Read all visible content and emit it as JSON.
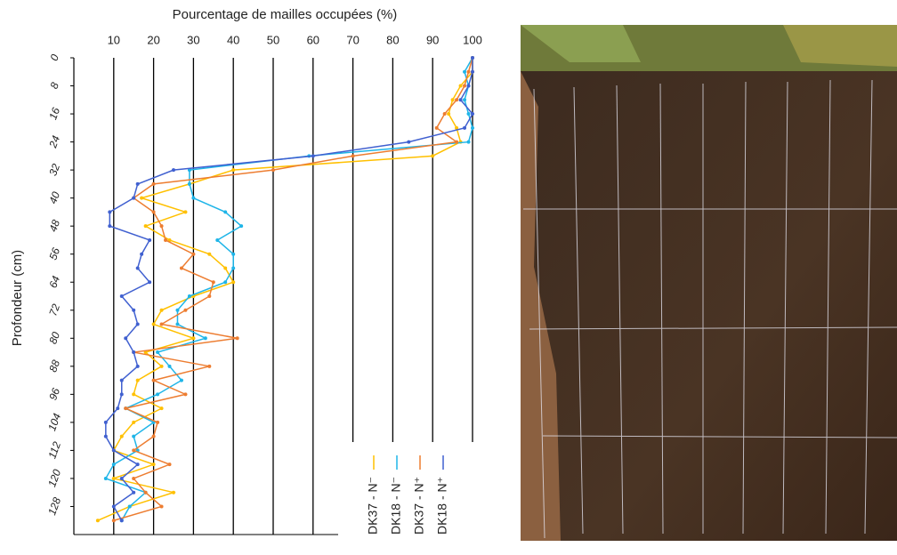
{
  "chart_data": {
    "type": "line",
    "orientation": "vertical",
    "title": "Pourcentage de mailles occupées (%)",
    "y_label": "Profondeur (cm)",
    "x": [
      0,
      4,
      8,
      12,
      16,
      20,
      24,
      28,
      32,
      36,
      40,
      44,
      48,
      52,
      56,
      60,
      64,
      68,
      72,
      76,
      80,
      84,
      88,
      92,
      96,
      100,
      104,
      108,
      112,
      116,
      120,
      124,
      128,
      132
    ],
    "xlim": [
      0,
      136
    ],
    "xticks": [
      0,
      8,
      16,
      24,
      32,
      40,
      48,
      56,
      64,
      72,
      80,
      88,
      96,
      104,
      112,
      120,
      128
    ],
    "ylim": [
      0,
      100
    ],
    "yticks": [
      10,
      20,
      30,
      40,
      50,
      60,
      70,
      80,
      90,
      100
    ],
    "grid": true,
    "legend": "bottom-right",
    "series": [
      {
        "name": "DK37 - N⁻",
        "color": "#ffc000",
        "values": [
          100,
          100,
          97,
          95,
          94,
          96,
          97,
          90,
          40,
          29,
          17,
          28,
          18,
          24,
          34,
          38,
          40,
          30,
          22,
          20,
          30,
          18,
          22,
          16,
          15,
          22,
          15,
          12,
          10,
          20,
          10,
          25,
          14,
          6
        ]
      },
      {
        "name": "DK18 - N⁻",
        "color": "#1fb5e8",
        "values": [
          100,
          98,
          99,
          98,
          99,
          100,
          99,
          59,
          29,
          29,
          30,
          38,
          42,
          36,
          40,
          40,
          38,
          29,
          26,
          26,
          33,
          21,
          24,
          27,
          21,
          13,
          20,
          15,
          16,
          10,
          8,
          18,
          14,
          12
        ]
      },
      {
        "name": "DK37 - N⁺",
        "color": "#ed7d31",
        "values": [
          100,
          99,
          98,
          96,
          93,
          91,
          96,
          70,
          50,
          20,
          15,
          20,
          22,
          23,
          30,
          27,
          35,
          34,
          28,
          22,
          41,
          15,
          34,
          20,
          28,
          13,
          21,
          20,
          15,
          24,
          15,
          18,
          22,
          10
        ]
      },
      {
        "name": "DK18 - N⁺",
        "color": "#4060d0",
        "values": [
          100,
          100,
          99,
          97,
          100,
          98,
          84,
          60,
          25,
          16,
          15,
          9,
          9,
          19,
          17,
          16,
          19,
          12,
          15,
          16,
          13,
          15,
          16,
          12,
          12,
          11,
          8,
          8,
          10,
          16,
          12,
          15,
          10,
          12
        ]
      }
    ]
  }
}
